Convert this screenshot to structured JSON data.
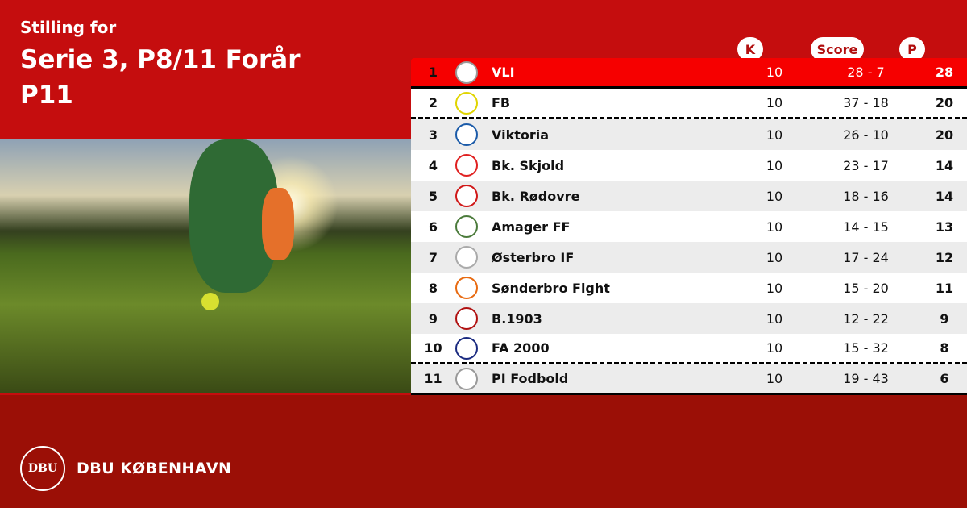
{
  "header": {
    "line1": "Stilling for",
    "line2": "Serie 3, P8/11 Forår",
    "line3": "P11"
  },
  "columns": {
    "k": "K",
    "score": "Score",
    "p": "P"
  },
  "colors": {
    "top_bg": "#c50d0e",
    "bottom_bg": "#9b0f06",
    "leader_row": "#f60000"
  },
  "rows": [
    {
      "pos": "1",
      "team": "VLI",
      "k": "10",
      "score": "28 - 7",
      "p": "28",
      "logo_color": "#999999"
    },
    {
      "pos": "2",
      "team": "FB",
      "k": "10",
      "score": "37 - 18",
      "p": "20",
      "logo_color": "#e0d400"
    },
    {
      "pos": "3",
      "team": "Viktoria",
      "k": "10",
      "score": "26 - 10",
      "p": "20",
      "logo_color": "#1a5aa8"
    },
    {
      "pos": "4",
      "team": "Bk. Skjold",
      "k": "10",
      "score": "23 - 17",
      "p": "14",
      "logo_color": "#e02020"
    },
    {
      "pos": "5",
      "team": "Bk. Rødovre",
      "k": "10",
      "score": "18 - 16",
      "p": "14",
      "logo_color": "#d01818"
    },
    {
      "pos": "6",
      "team": "Amager FF",
      "k": "10",
      "score": "14 - 15",
      "p": "13",
      "logo_color": "#4a7a3a"
    },
    {
      "pos": "7",
      "team": "Østerbro IF",
      "k": "10",
      "score": "17 - 24",
      "p": "12",
      "logo_color": "#aaaaaa"
    },
    {
      "pos": "8",
      "team": "Sønderbro Fight",
      "k": "10",
      "score": "15 - 20",
      "p": "11",
      "logo_color": "#e86a10"
    },
    {
      "pos": "9",
      "team": "B.1903",
      "k": "10",
      "score": "12 - 22",
      "p": "9",
      "logo_color": "#b01010"
    },
    {
      "pos": "10",
      "team": "FA 2000",
      "k": "10",
      "score": "15 - 32",
      "p": "8",
      "logo_color": "#1a2a80"
    },
    {
      "pos": "11",
      "team": "PI Fodbold",
      "k": "10",
      "score": "19 - 43",
      "p": "6",
      "logo_color": "#999999"
    }
  ],
  "footer": {
    "brand": "DBU KØBENHAVN",
    "seal_text": "DBU"
  }
}
